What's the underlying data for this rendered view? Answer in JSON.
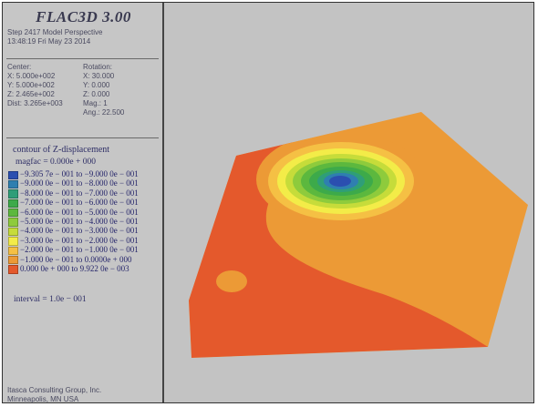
{
  "header": {
    "app_title": "FLAC3D 3.00",
    "step_line": "Step 2417  Model Perspective",
    "timestamp": "13:48:19 Fri May 23 2014"
  },
  "view": {
    "center_label": "Center:",
    "center_x": "X: 5.000e+002",
    "center_y": "Y: 5.000e+002",
    "center_z": "Z: 2.465e+002",
    "dist": "Dist: 3.265e+003",
    "rotation_label": "Rotation:",
    "rot_x": "X:  30.000",
    "rot_y": "Y:   0.000",
    "rot_z": "Z:   0.000",
    "mag": "Mag.:       1",
    "ang": "Ang.:  22.500"
  },
  "legend": {
    "title": "contour of Z-displacement",
    "magfac": "magfac = 0.000e + 000",
    "interval": "interval = 1.0e − 001",
    "entries": [
      {
        "label": "−9.305 7e − 001 to −9.000 0e − 001",
        "color": "#2b4fb0"
      },
      {
        "label": "−9.000 0e − 001 to −8.000 0e − 001",
        "color": "#2f7fb0"
      },
      {
        "label": "−8.000 0e − 001 to −7.000 0e − 001",
        "color": "#2f9e78"
      },
      {
        "label": "−7.000 0e − 001 to −6.000 0e − 001",
        "color": "#3daa4a"
      },
      {
        "label": "−6.000 0e − 001 to −5.000 0e − 001",
        "color": "#5cb83e"
      },
      {
        "label": "−5.000 0e − 001 to −4.000 0e − 001",
        "color": "#8ecb3c"
      },
      {
        "label": "−4.000 0e − 001 to −3.000 0e − 001",
        "color": "#c6dc3a"
      },
      {
        "label": "−3.000 0e − 001 to −2.000 0e − 001",
        "color": "#f3ec48"
      },
      {
        "label": "−2.000 0e − 001 to −1.000 0e − 001",
        "color": "#f5c044"
      },
      {
        "label": "−1.000 0e − 001 to 0.0000e + 000",
        "color": "#ec9a36"
      },
      {
        "label": "0.000 0e + 000 to 9.922 0e − 003",
        "color": "#e4592c"
      }
    ]
  },
  "footer": {
    "company": "Itasca Consulting Group, Inc.",
    "location": "Minneapolis, MN  USA"
  },
  "colors": {
    "panel_bg": "#c6c6c6",
    "viewport_bg": "#c3c3c3",
    "contour_base": "#ec9a36",
    "contour_edge": "#e4592c"
  }
}
